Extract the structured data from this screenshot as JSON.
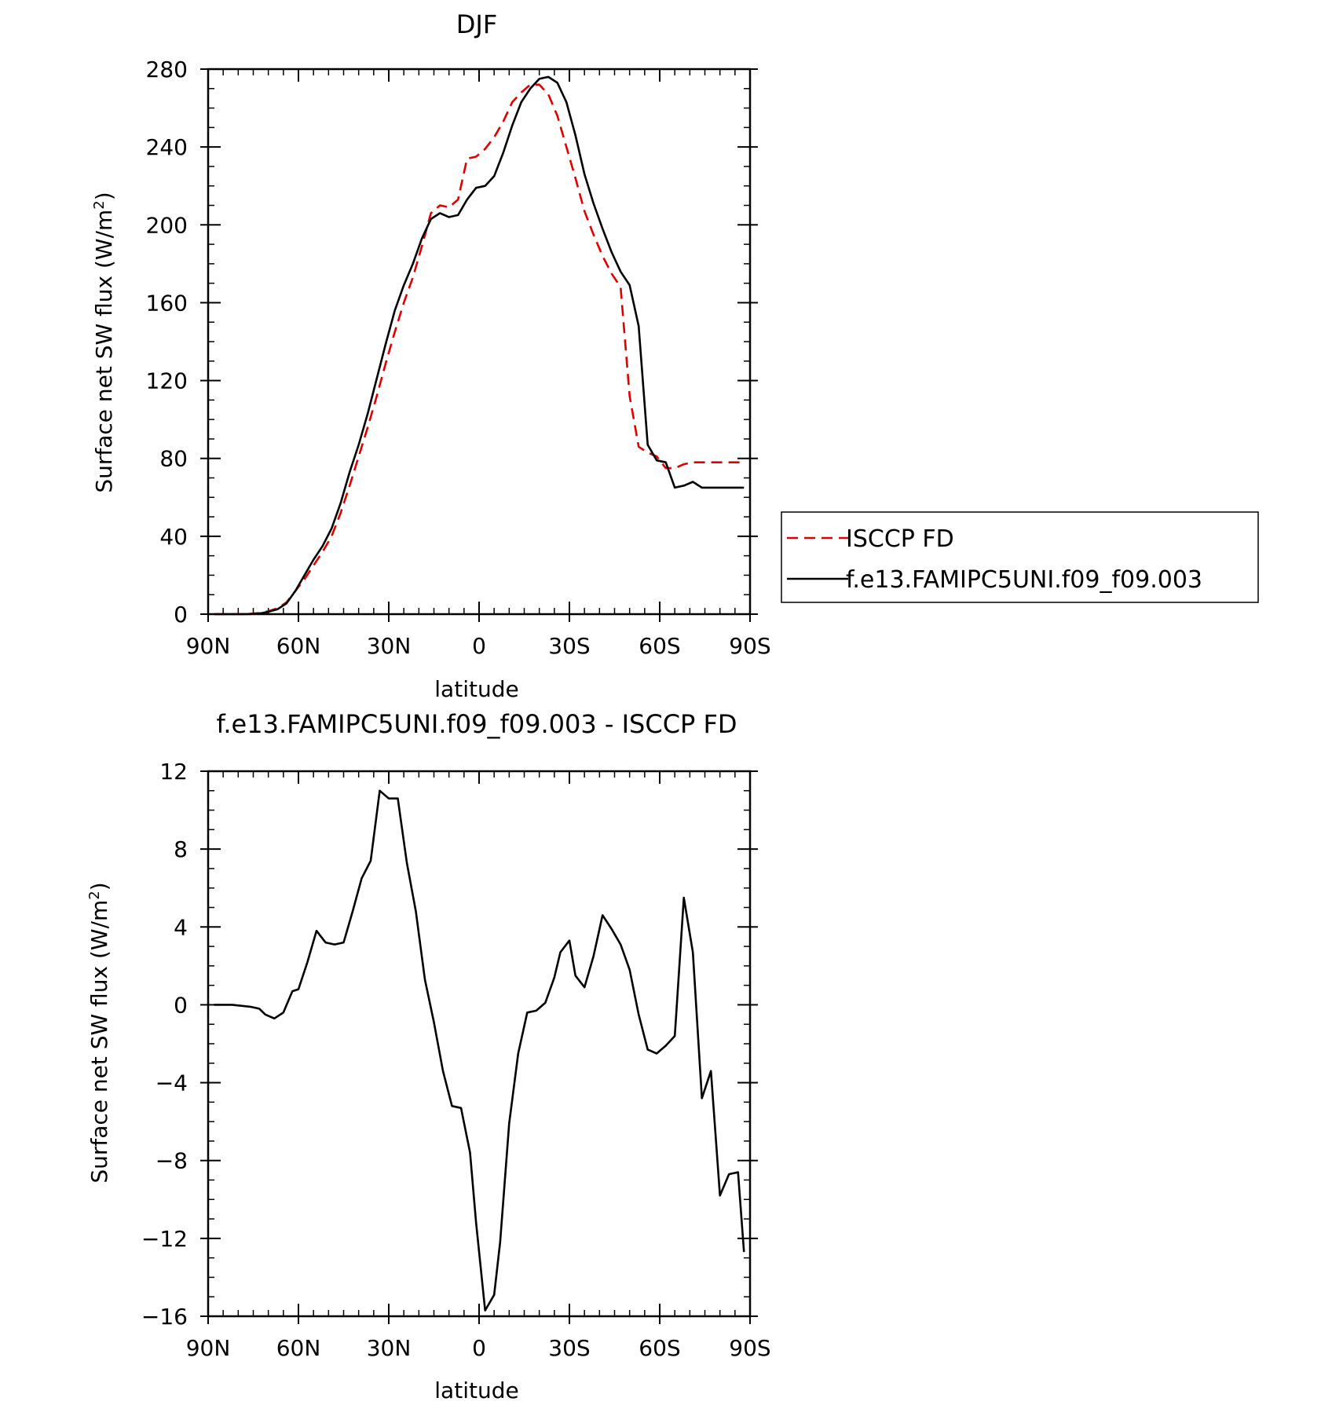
{
  "chart_data": [
    {
      "type": "line",
      "title": "DJF",
      "xlabel": "latitude",
      "ylabel": "Surface net SW flux (W/m",
      "ylabel_sup": "2",
      "ylabel_close": ")",
      "xlim": [
        90,
        -90
      ],
      "ylim": [
        0,
        280
      ],
      "xticks": [
        90,
        60,
        30,
        0,
        -30,
        -60,
        -90
      ],
      "xtick_labels": [
        "90N",
        "60N",
        "30N",
        "0",
        "30S",
        "60S",
        "90S"
      ],
      "yticks": [
        0,
        40,
        80,
        120,
        160,
        200,
        240,
        280
      ],
      "ytick_labels": [
        "0",
        "40",
        "80",
        "120",
        "160",
        "200",
        "240",
        "280"
      ],
      "grid": false,
      "legend_position": "right",
      "series": [
        {
          "name": "ISCCP FD",
          "color": "#e00000",
          "dash": "dashed",
          "x": [
            88,
            85,
            82,
            79,
            76,
            73,
            70,
            67,
            64,
            61,
            58,
            55,
            52,
            49,
            46,
            43,
            40,
            37,
            34,
            31,
            28,
            25,
            22,
            19,
            16,
            13,
            10,
            7,
            4,
            1,
            -2,
            -5,
            -8,
            -11,
            -14,
            -17,
            -20,
            -23,
            -26,
            -29,
            -32,
            -35,
            -38,
            -41,
            -44,
            -47,
            -50,
            -53,
            -56,
            -59,
            -62,
            -65,
            -68,
            -71,
            -74,
            -77,
            -80,
            -83,
            -86,
            -88
          ],
          "values": [
            0,
            0,
            0,
            0,
            0.2,
            0.6,
            1.5,
            3,
            6,
            12,
            18,
            25,
            32,
            40,
            52,
            66,
            81,
            96,
            112,
            129,
            145,
            160,
            173,
            189,
            206,
            210,
            209,
            213,
            234,
            235,
            239,
            245,
            253,
            263,
            268,
            272,
            272,
            267,
            256,
            240,
            224,
            207,
            195,
            184,
            175,
            168,
            112,
            86,
            83,
            81,
            75,
            75,
            77,
            78,
            78,
            78,
            78,
            78,
            78,
            78
          ]
        },
        {
          "name": "f.e13.FAMIPC5UNI.f09_f09.003",
          "color": "#000000",
          "dash": "solid",
          "x": [
            88,
            85,
            82,
            79,
            76,
            73,
            70,
            67,
            64,
            61,
            58,
            55,
            52,
            49,
            46,
            43,
            40,
            37,
            34,
            31,
            28,
            25,
            22,
            19,
            16,
            13,
            10,
            7,
            4,
            1,
            -2,
            -5,
            -8,
            -11,
            -14,
            -17,
            -20,
            -23,
            -26,
            -29,
            -32,
            -35,
            -38,
            -41,
            -44,
            -47,
            -50,
            -53,
            -56,
            -59,
            -62,
            -65,
            -68,
            -71,
            -74,
            -77,
            -80,
            -83,
            -86,
            -88
          ],
          "values": [
            0,
            0,
            0,
            0,
            0.1,
            0.3,
            1.2,
            2.5,
            5.5,
            12,
            20,
            28,
            35,
            44,
            57,
            73,
            87,
            103,
            121,
            139,
            156,
            169,
            180,
            193,
            203,
            206,
            204,
            205,
            213,
            219,
            220,
            225,
            237,
            251,
            263,
            270,
            275,
            276,
            273,
            263,
            246,
            226,
            211,
            198,
            186,
            176,
            169,
            148,
            87,
            79,
            78,
            65,
            66,
            68,
            65,
            65,
            65,
            65,
            65,
            65
          ]
        }
      ]
    },
    {
      "type": "line",
      "title": "f.e13.FAMIPC5UNI.f09_f09.003 - ISCCP FD",
      "xlabel": "latitude",
      "ylabel": "Surface net SW flux (W/m",
      "ylabel_sup": "2",
      "ylabel_close": ")",
      "xlim": [
        90,
        -90
      ],
      "ylim": [
        -16,
        12
      ],
      "xticks": [
        90,
        60,
        30,
        0,
        -30,
        -60,
        -90
      ],
      "xtick_labels": [
        "90N",
        "60N",
        "30N",
        "0",
        "30S",
        "60S",
        "90S"
      ],
      "yticks": [
        12,
        8,
        4,
        0,
        -4,
        -8,
        -12,
        -16
      ],
      "ytick_labels": [
        "12",
        "8",
        "4",
        "0",
        "−4",
        "−8",
        "−12",
        "−16"
      ],
      "grid": false,
      "series": [
        {
          "name": "",
          "color": "#000000",
          "dash": "solid",
          "x": [
            88,
            85,
            82,
            79,
            76,
            73,
            71,
            68,
            65,
            62,
            60,
            57,
            54,
            51,
            48,
            45,
            42,
            39,
            36,
            33,
            30,
            27,
            24,
            21,
            18,
            15,
            12,
            9,
            6,
            3,
            1,
            -2,
            -5,
            -7,
            -10,
            -13,
            -16,
            -19,
            -22,
            -25,
            -27,
            -30,
            -32,
            -35,
            -38,
            -41,
            -44,
            -47,
            -50,
            -53,
            -56,
            -59,
            -62,
            -65,
            -68,
            -71,
            -74,
            -77,
            -80,
            -83,
            -86,
            -88
          ],
          "values": [
            0,
            0,
            0,
            -0.05,
            -0.1,
            -0.2,
            -0.5,
            -0.7,
            -0.4,
            0.7,
            0.8,
            2.2,
            3.8,
            3.2,
            3.1,
            3.2,
            4.8,
            6.5,
            7.4,
            11.0,
            10.6,
            10.6,
            7.3,
            4.8,
            1.3,
            -0.9,
            -3.4,
            -5.2,
            -5.3,
            -7.6,
            -11.2,
            -15.7,
            -14.9,
            -12.2,
            -6.1,
            -2.5,
            -0.4,
            -0.3,
            0.1,
            1.4,
            2.7,
            3.3,
            1.5,
            0.9,
            2.5,
            4.6,
            3.9,
            3.1,
            1.8,
            -0.5,
            -2.3,
            -2.5,
            -2.1,
            -1.6,
            5.5,
            2.7,
            -4.8,
            -3.4,
            -9.8,
            -8.7,
            -8.6,
            -12.7
          ]
        }
      ]
    }
  ]
}
